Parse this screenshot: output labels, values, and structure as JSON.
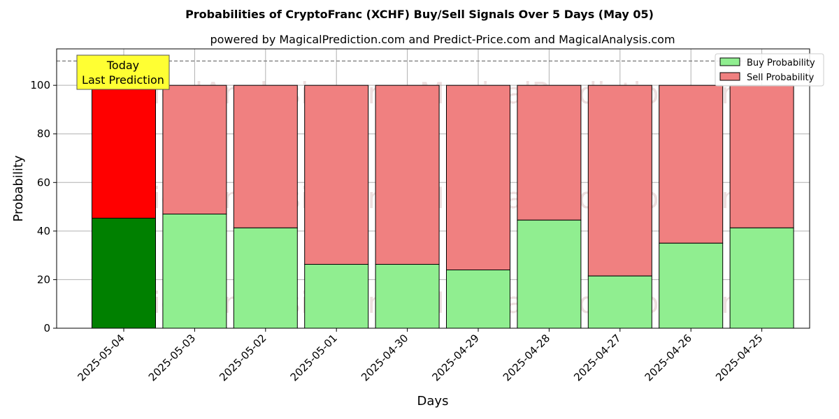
{
  "chart_data": {
    "type": "bar",
    "stacked": true,
    "title": "Probabilities of CryptoFranc (XCHF) Buy/Sell Signals Over 5 Days (May 05)",
    "subtitle": "powered by MagicalPrediction.com and Predict-Price.com and MagicalAnalysis.com",
    "xlabel": "Days",
    "ylabel": "Probability",
    "ylim": [
      0,
      115
    ],
    "yticks": [
      0,
      20,
      40,
      60,
      80,
      100
    ],
    "grid": true,
    "legend_position": "top-right",
    "reference_line": 110,
    "categories": [
      "2025-05-04",
      "2025-05-03",
      "2025-05-02",
      "2025-05-01",
      "2025-04-30",
      "2025-04-29",
      "2025-04-28",
      "2025-04-27",
      "2025-04-26",
      "2025-04-25"
    ],
    "series": [
      {
        "name": "Buy Probability",
        "values": [
          45.3,
          47.0,
          41.3,
          26.3,
          26.3,
          24.0,
          44.5,
          21.5,
          35.0,
          41.3
        ],
        "color": "#90ee90",
        "highlight_color": "#008000"
      },
      {
        "name": "Sell Probability",
        "values": [
          54.7,
          53.0,
          58.7,
          73.7,
          73.7,
          76.0,
          55.5,
          78.5,
          65.0,
          58.7
        ],
        "color": "#f08080",
        "highlight_color": "#ff0000"
      }
    ],
    "annotation": {
      "line1": "Today",
      "line2": "Last Prediction",
      "background": "#ffff33"
    },
    "watermarks": [
      "MagicalAnalysis.com",
      "MagicalPrediction.com"
    ]
  }
}
